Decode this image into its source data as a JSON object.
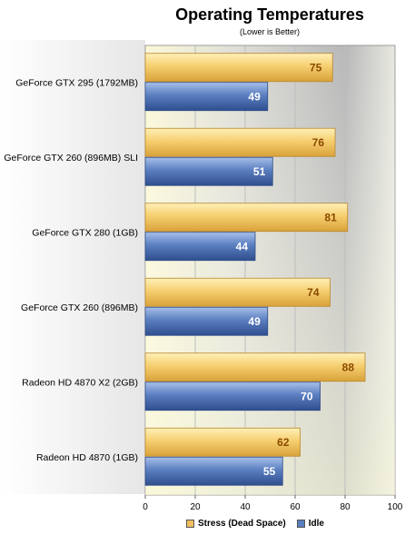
{
  "chart_data": {
    "type": "bar",
    "orientation": "horizontal",
    "title": "Operating Temperatures",
    "subtitle": "(Lower is Better)",
    "categories": [
      "GeForce GTX 295 (1792MB)",
      "GeForce GTX 260 (896MB) SLI",
      "GeForce GTX 280 (1GB)",
      "GeForce GTX 260 (896MB)",
      "Radeon HD 4870 X2 (2GB)",
      "Radeon HD 4870 (1GB)"
    ],
    "series": [
      {
        "name": "Stress (Dead Space)",
        "values": [
          75,
          76,
          81,
          74,
          88,
          62
        ],
        "color": "#f0c060"
      },
      {
        "name": "Idle",
        "values": [
          49,
          51,
          44,
          49,
          70,
          55
        ],
        "color": "#5b7fc0"
      }
    ],
    "xlim": [
      0,
      100
    ],
    "xticks": [
      "0",
      "20",
      "40",
      "60",
      "80",
      "100"
    ],
    "grid": true,
    "legend_position": "bottom",
    "background": "yellow-gray gradient"
  }
}
